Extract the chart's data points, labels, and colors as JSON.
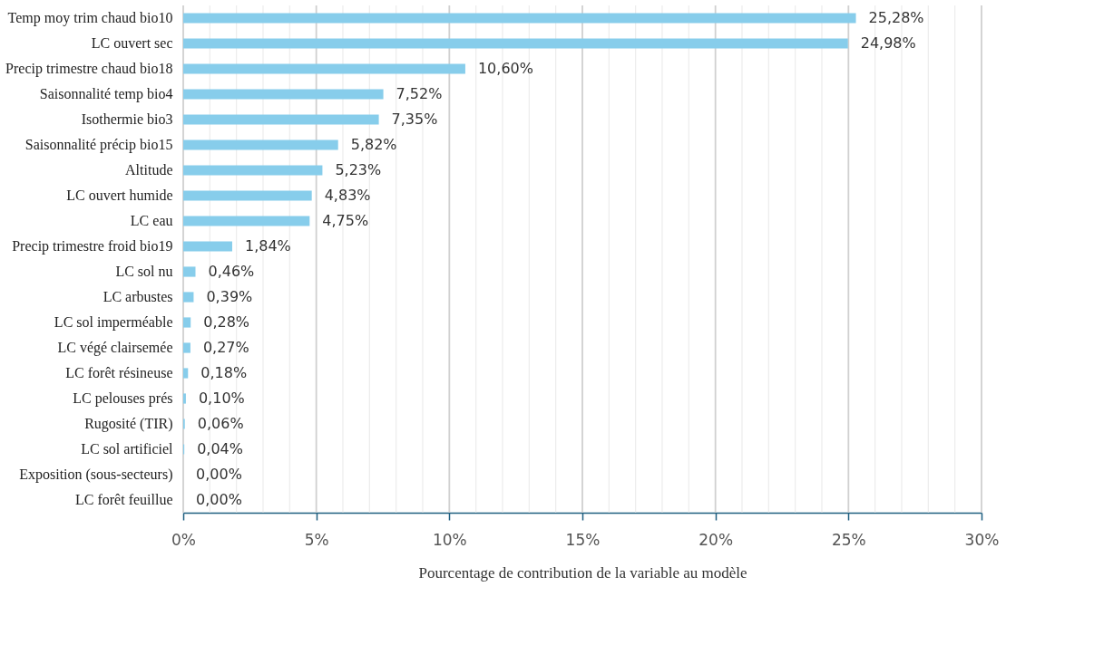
{
  "chart_data": {
    "type": "bar",
    "orientation": "horizontal",
    "xlabel": "Pourcentage de contribution de la variable au modèle",
    "categories": [
      "Temp moy trim chaud bio10",
      "LC ouvert sec",
      "Precip trimestre chaud bio18",
      "Saisonnalité temp bio4",
      "Isothermie bio3",
      "Saisonnalité précip bio15",
      "Altitude",
      "LC ouvert humide",
      "LC eau",
      "Precip trimestre froid bio19",
      "LC sol nu",
      "LC arbustes",
      "LC sol imperméable",
      "LC végé clairsemée",
      "LC forêt résineuse",
      "LC pelouses prés",
      "Rugosité (TIR)",
      "LC sol artificiel",
      "Exposition (sous-secteurs)",
      "LC forêt feuillue"
    ],
    "values": [
      25.28,
      24.98,
      10.6,
      7.52,
      7.35,
      5.82,
      5.23,
      4.83,
      4.75,
      1.84,
      0.46,
      0.39,
      0.28,
      0.27,
      0.18,
      0.1,
      0.06,
      0.04,
      0.0,
      0.0
    ],
    "value_labels": [
      "25,28%",
      "24,98%",
      "10,60%",
      "7,52%",
      "7,35%",
      "5,82%",
      "5,23%",
      "4,83%",
      "4,75%",
      "1,84%",
      "0,46%",
      "0,39%",
      "0,28%",
      "0,27%",
      "0,18%",
      "0,10%",
      "0,06%",
      "0,04%",
      "0,00%",
      "0,00%"
    ],
    "color": "#87cdeb",
    "xlim": [
      0,
      30
    ],
    "xticks": [
      {
        "value": 0,
        "label": "0%"
      },
      {
        "value": 1,
        "label": null
      },
      {
        "value": 2,
        "label": null
      },
      {
        "value": 3,
        "label": null
      },
      {
        "value": 4,
        "label": null
      },
      {
        "value": 5,
        "label": "5%"
      },
      {
        "value": 6,
        "label": null
      },
      {
        "value": 7,
        "label": null
      },
      {
        "value": 8,
        "label": null
      },
      {
        "value": 9,
        "label": null
      },
      {
        "value": 10,
        "label": "10%"
      },
      {
        "value": 11,
        "label": null
      },
      {
        "value": 12,
        "label": null
      },
      {
        "value": 13,
        "label": null
      },
      {
        "value": 14,
        "label": null
      },
      {
        "value": 15,
        "label": "15%"
      },
      {
        "value": 16,
        "label": null
      },
      {
        "value": 17,
        "label": null
      },
      {
        "value": 18,
        "label": null
      },
      {
        "value": 19,
        "label": null
      },
      {
        "value": 20,
        "label": "20%"
      },
      {
        "value": 21,
        "label": null
      },
      {
        "value": 22,
        "label": null
      },
      {
        "value": 23,
        "label": null
      },
      {
        "value": 24,
        "label": null
      },
      {
        "value": 25,
        "label": "25%"
      },
      {
        "value": 26,
        "label": null
      },
      {
        "value": 27,
        "label": null
      },
      {
        "value": 28,
        "label": null
      },
      {
        "value": 29,
        "label": null
      },
      {
        "value": 30,
        "label": "30%"
      }
    ],
    "grid": "x"
  }
}
